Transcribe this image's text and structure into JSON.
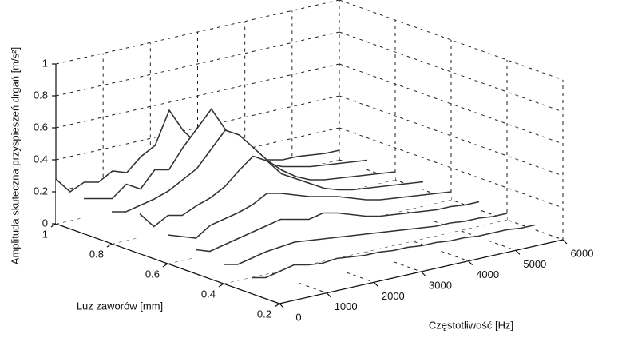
{
  "chart_data": {
    "type": "waterfall3d",
    "zlabel": "Amplituda skuteczna przyspieszeń drgań [m/s²]",
    "ylabel": "Luz zaworów [mm]",
    "xlabel": "Częstotliwość [Hz]",
    "xlim": [
      0,
      6000
    ],
    "xticks": [
      0,
      1000,
      2000,
      3000,
      4000,
      5000,
      6000
    ],
    "ylim": [
      0.2,
      1
    ],
    "yticks": [
      0.2,
      0.4,
      0.6,
      0.8,
      1
    ],
    "zlim": [
      0,
      1
    ],
    "zticks": [
      0,
      0.2,
      0.4,
      0.6,
      0.8,
      1
    ],
    "grid": true,
    "color": "#333333",
    "x": [
      0,
      300,
      600,
      900,
      1200,
      1500,
      1800,
      2100,
      2400,
      2700,
      3000,
      3300,
      3600,
      3900,
      4200,
      4500,
      4800,
      5100,
      5400,
      5700,
      6000
    ],
    "series": [
      {
        "y": 1.0,
        "values": [
          0.28,
          0.18,
          0.22,
          0.2,
          0.25,
          0.22,
          0.3,
          0.35,
          0.55,
          0.4,
          0.3,
          0.25,
          0.2,
          0.15,
          0.12,
          0.1,
          0.08,
          0.08,
          0.07,
          0.06,
          0.06
        ]
      },
      {
        "y": 0.9,
        "values": [
          0.22,
          0.2,
          0.18,
          0.25,
          0.2,
          0.3,
          0.28,
          0.4,
          0.5,
          0.6,
          0.45,
          0.35,
          0.25,
          0.18,
          0.14,
          0.12,
          0.1,
          0.09,
          0.08,
          0.07,
          0.06
        ]
      },
      {
        "y": 0.8,
        "values": [
          0.2,
          0.18,
          0.2,
          0.22,
          0.25,
          0.3,
          0.35,
          0.45,
          0.55,
          0.5,
          0.4,
          0.3,
          0.22,
          0.16,
          0.12,
          0.1,
          0.09,
          0.08,
          0.07,
          0.06,
          0.05
        ]
      },
      {
        "y": 0.7,
        "values": [
          0.25,
          0.15,
          0.2,
          0.18,
          0.22,
          0.25,
          0.3,
          0.38,
          0.45,
          0.4,
          0.3,
          0.25,
          0.2,
          0.15,
          0.12,
          0.1,
          0.09,
          0.08,
          0.07,
          0.06,
          0.05
        ]
      },
      {
        "y": 0.6,
        "values": [
          0.18,
          0.15,
          0.12,
          0.18,
          0.2,
          0.22,
          0.25,
          0.3,
          0.28,
          0.25,
          0.22,
          0.2,
          0.18,
          0.15,
          0.12,
          0.1,
          0.09,
          0.08,
          0.07,
          0.06,
          0.05
        ]
      },
      {
        "y": 0.5,
        "values": [
          0.15,
          0.12,
          0.14,
          0.16,
          0.18,
          0.2,
          0.22,
          0.2,
          0.18,
          0.2,
          0.18,
          0.15,
          0.12,
          0.1,
          0.09,
          0.08,
          0.07,
          0.06,
          0.06,
          0.05,
          0.05
        ]
      },
      {
        "y": 0.4,
        "values": [
          0.12,
          0.1,
          0.12,
          0.14,
          0.15,
          0.16,
          0.15,
          0.14,
          0.13,
          0.12,
          0.11,
          0.1,
          0.09,
          0.08,
          0.07,
          0.06,
          0.06,
          0.05,
          0.05,
          0.04,
          0.04
        ]
      },
      {
        "y": 0.3,
        "values": [
          0.1,
          0.08,
          0.1,
          0.12,
          0.1,
          0.09,
          0.1,
          0.09,
          0.08,
          0.08,
          0.07,
          0.07,
          0.06,
          0.06,
          0.05,
          0.05,
          0.04,
          0.04,
          0.04,
          0.03,
          0.03
        ]
      }
    ]
  }
}
